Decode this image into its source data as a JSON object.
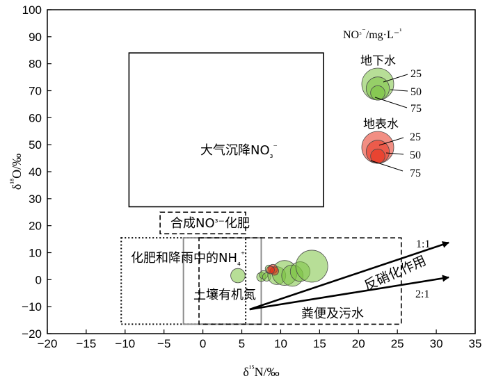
{
  "chart_data": {
    "type": "scatter",
    "xlabel": "δ¹⁵N/‰",
    "ylabel": "δ¹⁸O/‰",
    "xlim": [
      -20,
      35
    ],
    "ylim": [
      -20,
      100
    ],
    "x_ticks": [
      -20,
      -15,
      -10,
      -5,
      0,
      5,
      10,
      15,
      20,
      25,
      30,
      35
    ],
    "y_ticks": [
      -20,
      -10,
      0,
      10,
      20,
      30,
      40,
      50,
      60,
      70,
      80,
      90,
      100
    ],
    "legend_title": "NO₃⁻/mg·L⁻¹",
    "series": [
      {
        "name": "地下水",
        "color": "#7cc242",
        "points": [
          {
            "x": 4.5,
            "y": 1.5,
            "no3": 25
          },
          {
            "x": 7.5,
            "y": 1.0,
            "no3": 10
          },
          {
            "x": 7.8,
            "y": 1.8,
            "no3": 8
          },
          {
            "x": 8.2,
            "y": 1.0,
            "no3": 8
          },
          {
            "x": 9.5,
            "y": 1.5,
            "no3": 35
          },
          {
            "x": 10.5,
            "y": 2.5,
            "no3": 55
          },
          {
            "x": 11.5,
            "y": 1.5,
            "no3": 45
          },
          {
            "x": 12.5,
            "y": 3.0,
            "no3": 40
          },
          {
            "x": 14.0,
            "y": 5.0,
            "no3": 75
          },
          {
            "x": 8.5,
            "y": 4.0,
            "no3": 6
          }
        ]
      },
      {
        "name": "地表水",
        "color": "#e8321e",
        "points": [
          {
            "x": 9.0,
            "y": 4.0,
            "no3": 10
          },
          {
            "x": 9.2,
            "y": 3.2,
            "no3": 8
          },
          {
            "x": 8.7,
            "y": 3.6,
            "no3": 6
          }
        ]
      }
    ],
    "legend": {
      "groundwater_label": "地下水",
      "surface_label": "地表水",
      "size_labels": [
        "25",
        "50",
        "75"
      ]
    },
    "regions": [
      {
        "name": "大气沉降NO₃⁻",
        "x": [
          -9.5,
          15.5
        ],
        "y": [
          27,
          84
        ],
        "style": "solid"
      },
      {
        "name": "合成NO₃⁻化肥",
        "x": [
          -5.5,
          5.5
        ],
        "y": [
          17,
          25
        ],
        "style": "dashed"
      },
      {
        "name": "化肥和降雨中的NH₄⁺",
        "x": [
          -10.5,
          5.5
        ],
        "y": [
          -16.5,
          15.5
        ],
        "style": "dotted"
      },
      {
        "name": "土壤有机氮",
        "x": [
          -2.5,
          7.5
        ],
        "y": [
          -16.5,
          15.5
        ],
        "style": "gray"
      },
      {
        "name": "粪便及污水",
        "x": [
          -0.5,
          25.5
        ],
        "y": [
          -16.5,
          15.5
        ],
        "style": "dashed"
      }
    ],
    "annotations": {
      "denitrification": "反硝化作用",
      "ratio_1_1": "1:1",
      "ratio_2_1": "2:1"
    }
  }
}
